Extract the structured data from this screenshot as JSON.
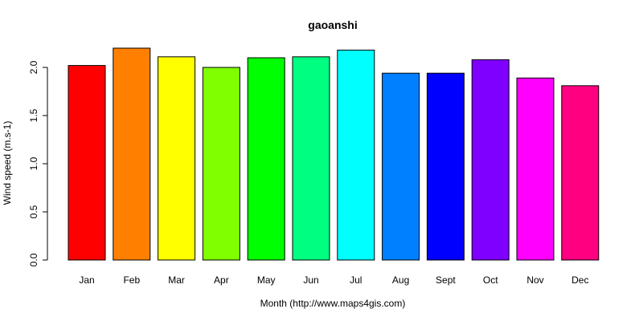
{
  "chart_data": {
    "type": "bar",
    "title": "gaoanshi",
    "xlabel": "Month (http://www.maps4gis.com)",
    "ylabel": "Wind speed (m.s-1)",
    "categories": [
      "Jan",
      "Feb",
      "Mar",
      "Apr",
      "May",
      "Jun",
      "Jul",
      "Aug",
      "Sept",
      "Oct",
      "Nov",
      "Dec"
    ],
    "values": [
      2.02,
      2.2,
      2.11,
      2.0,
      2.1,
      2.11,
      2.18,
      1.94,
      1.94,
      2.08,
      1.89,
      1.81
    ],
    "colors": [
      "#FF0000",
      "#FF8000",
      "#FFFF00",
      "#80FF00",
      "#00FF00",
      "#00FF80",
      "#00FFFF",
      "#0080FF",
      "#0000FF",
      "#8000FF",
      "#FF00FF",
      "#FF0080"
    ],
    "ylim": [
      0,
      2.2
    ],
    "yticks": [
      "0.0",
      "0.5",
      "1.0",
      "1.5",
      "2.0"
    ],
    "grid": false,
    "legend": "none"
  }
}
